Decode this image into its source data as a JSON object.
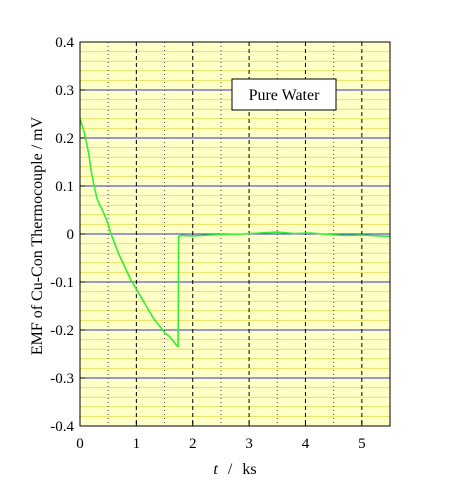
{
  "chart_data": {
    "type": "line",
    "title": "",
    "xlabel_var": "t",
    "xlabel_sep": "/",
    "xlabel_unit": "ks",
    "ylabel": "EMF of Cu-Con Thermocouple / mV",
    "xlim": [
      0,
      5.5
    ],
    "ylim": [
      -0.4,
      0.4
    ],
    "xticks": [
      0,
      1,
      2,
      3,
      4,
      5
    ],
    "xtick_labels": [
      "0",
      "1",
      "2",
      "3",
      "4",
      "5"
    ],
    "yticks": [
      -0.4,
      -0.3,
      -0.2,
      -0.1,
      0,
      0.1,
      0.2,
      0.3,
      0.4
    ],
    "ytick_labels": [
      "-0.4",
      "-0.3",
      "-0.2",
      "-0.1",
      "0",
      "0.1",
      "0.2",
      "0.3",
      "0.4"
    ],
    "grid": true,
    "legend_position": "top-right",
    "series": [
      {
        "name": "Pure Water",
        "color": "#33ee33",
        "x": [
          0,
          0.08,
          0.15,
          0.2,
          0.25,
          0.3,
          0.35,
          0.4,
          0.45,
          0.5,
          0.55,
          0.6,
          0.65,
          0.7,
          0.8,
          0.9,
          1.0,
          1.1,
          1.2,
          1.3,
          1.4,
          1.5,
          1.6,
          1.7,
          1.74,
          1.745,
          1.75,
          1.8,
          2.0,
          2.3,
          2.6,
          2.9,
          3.2,
          3.5,
          3.8,
          4.1,
          4.4,
          4.7,
          5.0,
          5.3,
          5.5
        ],
        "y": [
          0.24,
          0.21,
          0.17,
          0.13,
          0.1,
          0.075,
          0.06,
          0.05,
          0.035,
          0.02,
          0.0,
          -0.015,
          -0.03,
          -0.045,
          -0.07,
          -0.095,
          -0.115,
          -0.135,
          -0.155,
          -0.175,
          -0.19,
          -0.205,
          -0.215,
          -0.23,
          -0.235,
          -0.12,
          -0.005,
          -0.003,
          -0.004,
          -0.002,
          -0.001,
          0.0,
          0.002,
          0.004,
          0.001,
          0.002,
          -0.001,
          -0.003,
          -0.002,
          -0.004,
          -0.005
        ]
      }
    ]
  }
}
